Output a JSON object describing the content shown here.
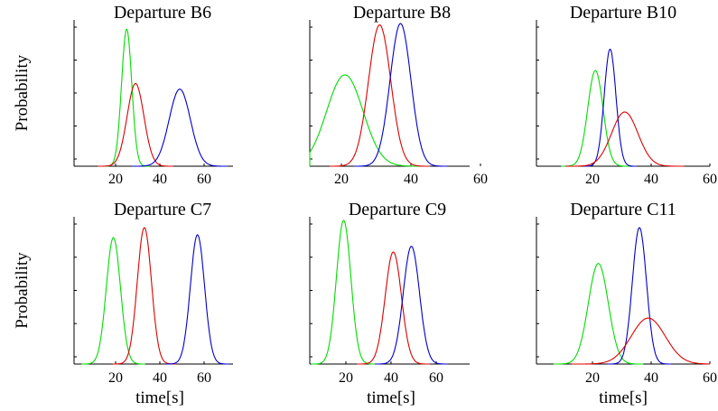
{
  "chart_data": [
    {
      "type": "line",
      "title": "Departure B6",
      "ylabel": "Probability",
      "xlabel": "",
      "xlim": [
        0,
        78
      ],
      "xticks": [
        20,
        40,
        60
      ],
      "series": [
        {
          "color": "#00dd00",
          "peak_x": 25,
          "sigma": 2.3,
          "peak": 0.96
        },
        {
          "color": "#dd0000",
          "peak_x": 29,
          "sigma": 3.8,
          "peak": 0.58
        },
        {
          "color": "#0000cc",
          "peak_x": 49,
          "sigma": 4.8,
          "peak": 0.54
        }
      ]
    },
    {
      "type": "line",
      "title": "Departure B8",
      "ylabel": "",
      "xlabel": "",
      "xlim": [
        0,
        62
      ],
      "xticks": [
        20,
        40,
        60
      ],
      "series": [
        {
          "color": "#00dd00",
          "peak_x": 21,
          "sigma": 5.2,
          "peak": 0.64
        },
        {
          "color": "#dd0000",
          "peak_x": 31,
          "sigma": 3.2,
          "peak": 0.99
        },
        {
          "color": "#0000cc",
          "peak_x": 37,
          "sigma": 3.0,
          "peak": 1.0
        }
      ]
    },
    {
      "type": "line",
      "title": "Departure B10",
      "ylabel": "",
      "xlabel": "",
      "xlim": [
        0,
        60
      ],
      "xticks": [
        20,
        40,
        60
      ],
      "series": [
        {
          "color": "#00dd00",
          "peak_x": 21,
          "sigma": 2.6,
          "peak": 0.67
        },
        {
          "color": "#0000cc",
          "peak_x": 26,
          "sigma": 2.0,
          "peak": 0.82
        },
        {
          "color": "#dd0000",
          "peak_x": 31,
          "sigma": 4.5,
          "peak": 0.38
        }
      ]
    },
    {
      "type": "line",
      "title": "Departure C7",
      "ylabel": "Probability",
      "xlabel": "time[s]",
      "xlim": [
        0,
        78
      ],
      "xticks": [
        20,
        40,
        60
      ],
      "series": [
        {
          "color": "#00dd00",
          "peak_x": 19,
          "sigma": 3.2,
          "peak": 0.88
        },
        {
          "color": "#dd0000",
          "peak_x": 33,
          "sigma": 3.2,
          "peak": 0.95
        },
        {
          "color": "#0000cc",
          "peak_x": 57,
          "sigma": 3.2,
          "peak": 0.9
        }
      ]
    },
    {
      "type": "line",
      "title": "Departure C9",
      "ylabel": "",
      "xlabel": "time[s]",
      "xlim": [
        0,
        72
      ],
      "xticks": [
        20,
        40,
        60
      ],
      "series": [
        {
          "color": "#00dd00",
          "peak_x": 19,
          "sigma": 3.2,
          "peak": 1.0
        },
        {
          "color": "#dd0000",
          "peak_x": 41,
          "sigma": 3.6,
          "peak": 0.78
        },
        {
          "color": "#0000cc",
          "peak_x": 49,
          "sigma": 3.6,
          "peak": 0.82
        }
      ]
    },
    {
      "type": "line",
      "title": "Departure C11",
      "ylabel": "",
      "xlabel": "time[s]",
      "xlim": [
        0,
        60
      ],
      "xticks": [
        20,
        40,
        60
      ],
      "series": [
        {
          "color": "#00dd00",
          "peak_x": 22,
          "sigma": 3.4,
          "peak": 0.7
        },
        {
          "color": "#0000cc",
          "peak_x": 36,
          "sigma": 2.4,
          "peak": 0.95
        },
        {
          "color": "#dd0000",
          "peak_x": 39,
          "sigma": 5.8,
          "peak": 0.32
        }
      ]
    }
  ]
}
